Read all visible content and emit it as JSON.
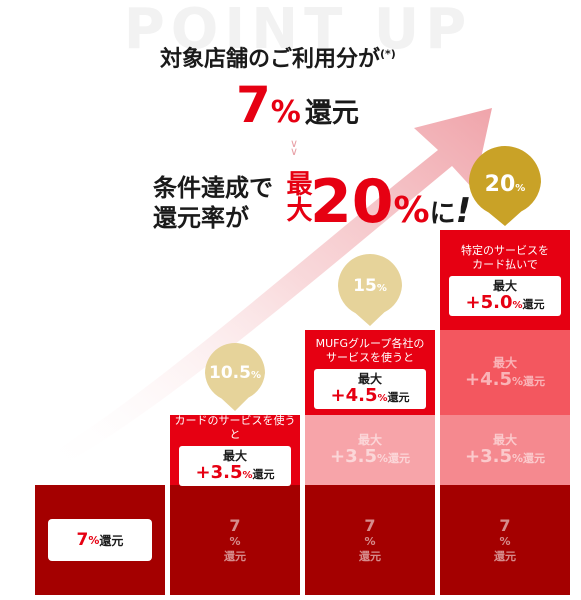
{
  "header": {
    "watermark": "POINT UP",
    "line1": "対象店舗のご利用分が",
    "line1_note": "(*)",
    "base_value": "7",
    "base_pct": "%",
    "base_suffix": "還元",
    "condition_line1": "条件達成で",
    "condition_line2": "還元率が",
    "max_label": "最大",
    "max_value": "20",
    "max_pct": "%",
    "max_suffix_ni": "に",
    "max_suffix_bang": "!"
  },
  "colors": {
    "base": "#a40000",
    "step_red": "#e60012",
    "step_mid": "#f3575f",
    "step_light": "#f7a4a9",
    "bubble_gold": "#c9a227",
    "bubble_light": "#e6d39a",
    "text_red": "#e60012"
  },
  "chart_data": {
    "type": "bar",
    "stacked": true,
    "categories": [
      "7%",
      "10.5%",
      "15%",
      "20%"
    ],
    "series": [
      {
        "name": "",
        "values": [
          7,
          7,
          7,
          7
        ]
      },
      {
        "name": "カードのサービスを使うと",
        "values": [
          0,
          3.5,
          3.5,
          3.5
        ]
      },
      {
        "name": "MUFGグループ各社のサービスを使うと",
        "values": [
          0,
          0,
          4.5,
          4.5
        ]
      },
      {
        "name": "特定のサービスをカード払いで",
        "values": [
          0,
          0,
          0,
          5.0
        ]
      }
    ],
    "totals": [
      "10.5",
      "15",
      "20"
    ],
    "total_pct": "%",
    "texts": {
      "base_value": "7",
      "pct": "%",
      "kangen": "還元",
      "max": "最大",
      "card_label": "カードのサービスを使うと",
      "card_value": "+3.5",
      "mufg_label_1": "MUFGグループ各社の",
      "mufg_label_2": "サービスを使うと",
      "mufg_value": "+4.5",
      "special_label_1": "特定のサービスを",
      "special_label_2": "カード払いで",
      "special_value": "+5.0"
    }
  }
}
